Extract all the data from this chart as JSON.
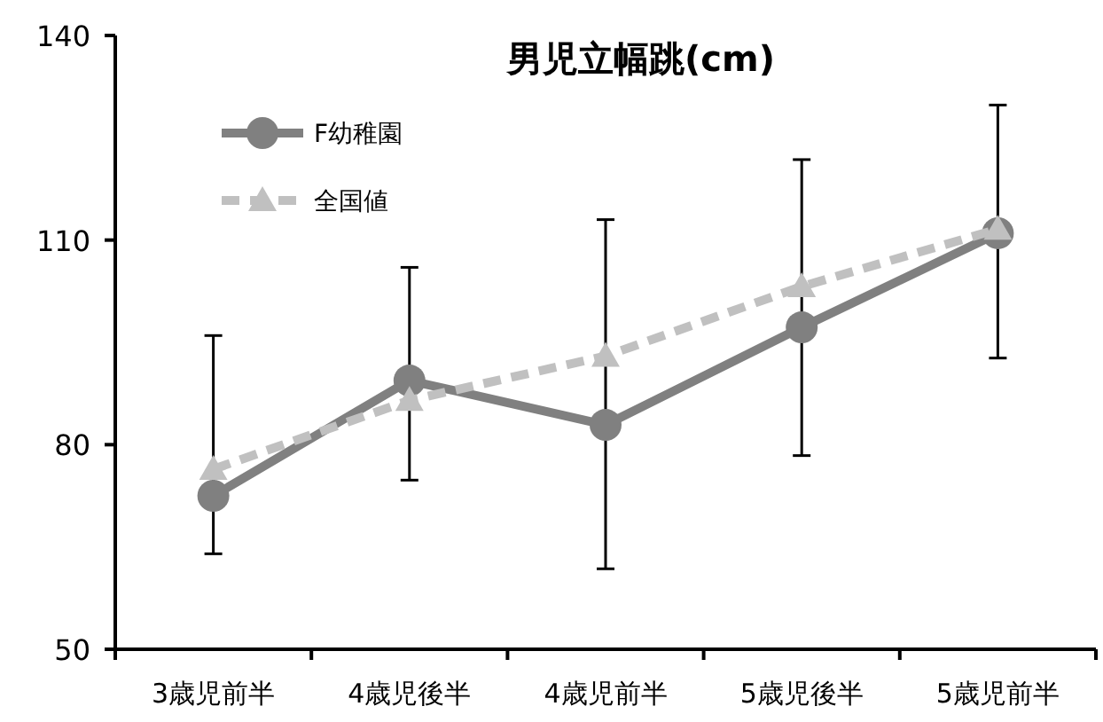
{
  "chart_data": {
    "type": "line",
    "title": "男児立幅跳(cm)",
    "categories": [
      "3歳児前半",
      "4歳児後半",
      "4歳児前半",
      "5歳児後半",
      "5歳児前半"
    ],
    "ylim": [
      50,
      140
    ],
    "yticks": [
      50,
      80,
      110,
      140
    ],
    "grid": false,
    "legend": "top left",
    "series": [
      {
        "name": "F幼稚園",
        "color": "#808080",
        "marker": "circle",
        "line_style": "solid",
        "values": [
          72.5,
          89.4,
          82.9,
          97.2,
          111
        ],
        "errors": [
          [
            64,
            96
          ],
          [
            74.8,
            106
          ],
          [
            61.8,
            113
          ],
          [
            78.4,
            121.8
          ],
          [
            92.7,
            129.8
          ]
        ]
      },
      {
        "name": "全国値",
        "color": "#c0c0c0",
        "marker": "triangle",
        "line_style": "dashed",
        "values": [
          76.4,
          86.5,
          93,
          103.2,
          111.6
        ]
      }
    ]
  }
}
